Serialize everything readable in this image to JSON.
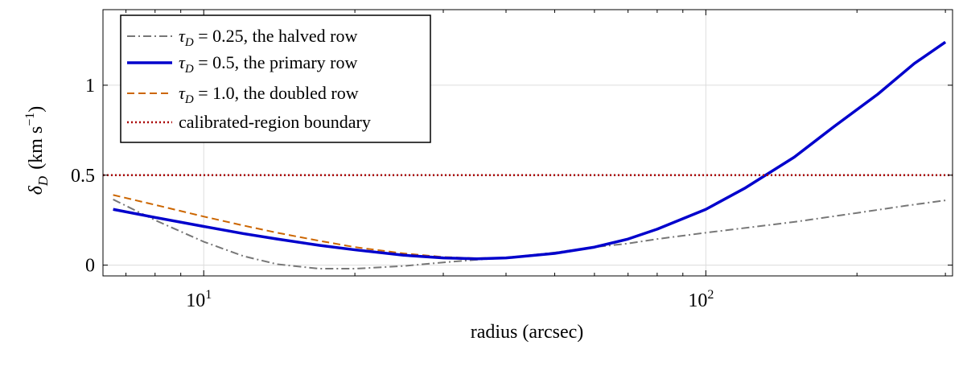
{
  "chart_data": {
    "type": "line",
    "xlabel": "radius (arcsec)",
    "ylabel_symbol": "δ",
    "ylabel_subscript": "D",
    "ylabel_unit": "(km s",
    "ylabel_unit_exp": "−1",
    "ylabel_unit_close": ")",
    "x_scale": "log",
    "xlim": [
      6.3,
      310
    ],
    "ylim": [
      -0.06,
      1.42
    ],
    "grid": true,
    "legend_position": "top-left",
    "x_ticks": [
      {
        "value": 10,
        "base": "10",
        "exp": "1"
      },
      {
        "value": 100,
        "base": "10",
        "exp": "2"
      }
    ],
    "y_ticks": [
      {
        "value": 0,
        "label": "0"
      },
      {
        "value": 0.5,
        "label": "0.5"
      },
      {
        "value": 1,
        "label": "1"
      }
    ],
    "series": [
      {
        "name_symbol": "τ",
        "name_subscript": "D",
        "name_rest": " = 0.25, the halved row",
        "color": "#777777",
        "dash": "dashdot",
        "points": [
          [
            6.6,
            0.365
          ],
          [
            8,
            0.25
          ],
          [
            10,
            0.13
          ],
          [
            12,
            0.05
          ],
          [
            14,
            0.005
          ],
          [
            17,
            -0.02
          ],
          [
            20,
            -0.02
          ],
          [
            25,
            -0.005
          ],
          [
            30,
            0.015
          ],
          [
            35,
            0.03
          ],
          [
            40,
            0.04
          ],
          [
            50,
            0.07
          ],
          [
            60,
            0.1
          ],
          [
            70,
            0.12
          ],
          [
            80,
            0.145
          ],
          [
            100,
            0.18
          ],
          [
            150,
            0.24
          ],
          [
            200,
            0.29
          ],
          [
            250,
            0.33
          ],
          [
            300,
            0.36
          ]
        ]
      },
      {
        "name_symbol": "τ",
        "name_subscript": "D",
        "name_rest": " = 0.5, the primary row",
        "color": "#0000cc",
        "dash": "solid",
        "points": [
          [
            6.6,
            0.31
          ],
          [
            8,
            0.265
          ],
          [
            10,
            0.215
          ],
          [
            12,
            0.175
          ],
          [
            14,
            0.145
          ],
          [
            17,
            0.11
          ],
          [
            20,
            0.085
          ],
          [
            25,
            0.055
          ],
          [
            30,
            0.04
          ],
          [
            35,
            0.035
          ],
          [
            40,
            0.04
          ],
          [
            50,
            0.065
          ],
          [
            60,
            0.1
          ],
          [
            70,
            0.145
          ],
          [
            80,
            0.2
          ],
          [
            100,
            0.31
          ],
          [
            120,
            0.43
          ],
          [
            150,
            0.6
          ],
          [
            180,
            0.77
          ],
          [
            220,
            0.95
          ],
          [
            260,
            1.12
          ],
          [
            300,
            1.24
          ]
        ]
      },
      {
        "name_symbol": "τ",
        "name_subscript": "D",
        "name_rest": " = 1.0, the doubled row",
        "color": "#cc6600",
        "dash": "dashed",
        "points": [
          [
            6.6,
            0.39
          ],
          [
            8,
            0.335
          ],
          [
            10,
            0.27
          ],
          [
            12,
            0.22
          ],
          [
            14,
            0.18
          ],
          [
            17,
            0.135
          ],
          [
            20,
            0.1
          ],
          [
            25,
            0.065
          ],
          [
            30,
            0.045
          ],
          [
            35,
            0.038
          ],
          [
            40,
            0.042
          ],
          [
            50,
            0.068
          ],
          [
            60,
            0.1
          ],
          [
            70,
            0.145
          ],
          [
            80,
            0.2
          ],
          [
            100,
            0.31
          ],
          [
            120,
            0.43
          ],
          [
            150,
            0.6
          ],
          [
            180,
            0.77
          ],
          [
            220,
            0.95
          ],
          [
            260,
            1.12
          ],
          [
            300,
            1.24
          ]
        ]
      },
      {
        "name": "calibrated-region boundary",
        "color": "#aa0000",
        "dash": "dotted",
        "y_constant": 0.5
      }
    ]
  }
}
